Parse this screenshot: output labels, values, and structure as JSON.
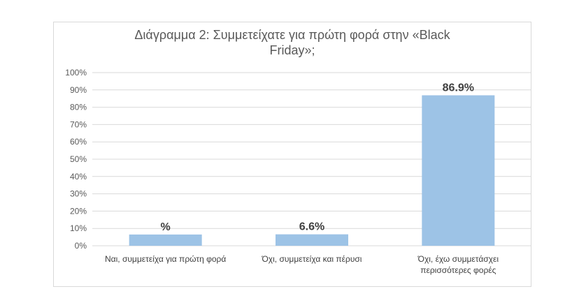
{
  "chart_data": {
    "type": "bar",
    "title_lines": [
      "Διάγραμμα 2: Συμμετείχατε για πρώτη φορά στην «Black",
      "Friday»;"
    ],
    "categories": [
      [
        "Ναι, συμμετείχα για πρώτη φορά"
      ],
      [
        "Όχι, συμμετείχα και πέρυσι"
      ],
      [
        "Όχι, έχω συμμετάσχει",
        "περισσότερες φορές"
      ]
    ],
    "values": [
      6.5,
      6.6,
      86.9
    ],
    "data_labels": [
      "%",
      "6.6%",
      "86.9%"
    ],
    "yticks": [
      "0%",
      "10%",
      "20%",
      "30%",
      "40%",
      "50%",
      "60%",
      "70%",
      "80%",
      "90%",
      "100%"
    ],
    "ylim": [
      0,
      100
    ],
    "bar_color": "#9dc3e6",
    "grid": true,
    "legend": "none"
  }
}
